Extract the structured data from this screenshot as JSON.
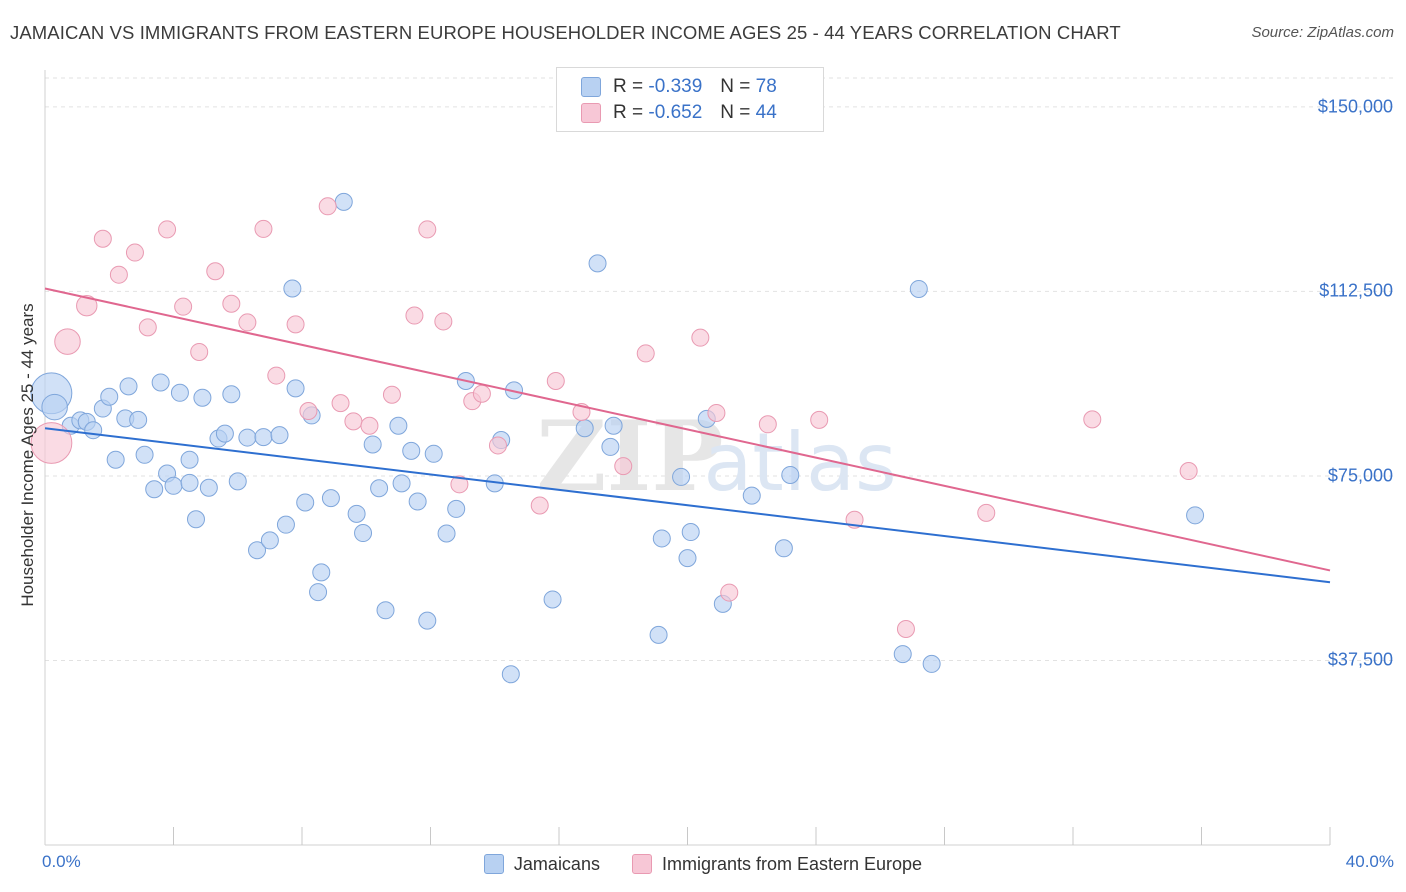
{
  "title": "JAMAICAN VS IMMIGRANTS FROM EASTERN EUROPE HOUSEHOLDER INCOME AGES 25 - 44 YEARS CORRELATION CHART",
  "source": "Source: ZipAtlas.com",
  "watermark": "ZIPatlas",
  "colors": {
    "blue_fill": "#b8d1f2",
    "blue_stroke": "#7fa6db",
    "blue_line": "#2e6fd0",
    "pink_fill": "#f7c7d6",
    "pink_stroke": "#e99ab2",
    "pink_line": "#e0678f",
    "tick_text": "#3a72c8",
    "grid": "#e2e2e2"
  },
  "legend_top": {
    "rows": [
      {
        "r_label": "R =",
        "r_value": "-0.339",
        "n_label": "N =",
        "n_value": "78",
        "series": "Jamaicans"
      },
      {
        "r_label": "R =",
        "r_value": "-0.652",
        "n_label": "N =",
        "n_value": "44",
        "series": "Immigrants from Eastern Europe"
      }
    ]
  },
  "legend_bottom": [
    "Jamaicans",
    "Immigrants from Eastern Europe"
  ],
  "chart_data": {
    "type": "scatter",
    "title": "JAMAICAN VS IMMIGRANTS FROM EASTERN EUROPE HOUSEHOLDER INCOME AGES 25 - 44 YEARS CORRELATION CHART",
    "xlabel": "",
    "ylabel": "Householder Income Ages 25 - 44 years",
    "xlim": [
      0,
      40
    ],
    "ylim": [
      0,
      157500
    ],
    "x_ticks_labeled": [
      {
        "value": 0,
        "label": "0.0%"
      },
      {
        "value": 40,
        "label": "40.0%"
      }
    ],
    "x_ticks_minor": [
      4,
      8,
      12,
      16,
      20,
      24,
      28,
      32,
      36,
      40
    ],
    "y_ticks": [
      {
        "value": 37500,
        "label": "$37,500"
      },
      {
        "value": 75000,
        "label": "$75,000"
      },
      {
        "value": 112500,
        "label": "$112,500"
      },
      {
        "value": 150000,
        "label": "$150,000"
      }
    ],
    "grid": "horizontal dashed",
    "legend": "top-center",
    "series": [
      {
        "name": "Jamaicans",
        "r": -0.339,
        "n": 78,
        "trend": {
          "x": [
            0,
            40
          ],
          "y": [
            84700,
            53400
          ]
        },
        "points": [
          {
            "x": 0.2,
            "y": 91800,
            "s": 2.4
          },
          {
            "x": 0.3,
            "y": 89000,
            "s": 1.5
          },
          {
            "x": 0.8,
            "y": 85200,
            "s": 1
          },
          {
            "x": 1.1,
            "y": 86300,
            "s": 1
          },
          {
            "x": 1.3,
            "y": 86000,
            "s": 1
          },
          {
            "x": 1.5,
            "y": 84300,
            "s": 1
          },
          {
            "x": 1.8,
            "y": 88700,
            "s": 1
          },
          {
            "x": 2.0,
            "y": 91100,
            "s": 1
          },
          {
            "x": 2.2,
            "y": 78300,
            "s": 1
          },
          {
            "x": 2.5,
            "y": 86700,
            "s": 1
          },
          {
            "x": 2.6,
            "y": 93200,
            "s": 1
          },
          {
            "x": 2.9,
            "y": 86400,
            "s": 1
          },
          {
            "x": 3.1,
            "y": 79300,
            "s": 1
          },
          {
            "x": 3.4,
            "y": 72300,
            "s": 1
          },
          {
            "x": 3.6,
            "y": 94000,
            "s": 1
          },
          {
            "x": 3.8,
            "y": 75500,
            "s": 1
          },
          {
            "x": 4.0,
            "y": 73000,
            "s": 1
          },
          {
            "x": 4.2,
            "y": 91900,
            "s": 1
          },
          {
            "x": 4.5,
            "y": 73600,
            "s": 1
          },
          {
            "x": 4.7,
            "y": 66200,
            "s": 1
          },
          {
            "x": 4.9,
            "y": 90900,
            "s": 1
          },
          {
            "x": 5.1,
            "y": 72600,
            "s": 1
          },
          {
            "x": 5.4,
            "y": 82600,
            "s": 1
          },
          {
            "x": 5.6,
            "y": 83600,
            "s": 1
          },
          {
            "x": 5.8,
            "y": 91600,
            "s": 1
          },
          {
            "x": 6.0,
            "y": 73900,
            "s": 1
          },
          {
            "x": 6.3,
            "y": 82800,
            "s": 1
          },
          {
            "x": 6.6,
            "y": 59900,
            "s": 1
          },
          {
            "x": 6.8,
            "y": 82900,
            "s": 1
          },
          {
            "x": 7.0,
            "y": 61900,
            "s": 1
          },
          {
            "x": 7.3,
            "y": 83300,
            "s": 1
          },
          {
            "x": 7.5,
            "y": 65100,
            "s": 1
          },
          {
            "x": 7.7,
            "y": 113100,
            "s": 1
          },
          {
            "x": 7.8,
            "y": 92800,
            "s": 1
          },
          {
            "x": 8.1,
            "y": 69600,
            "s": 1
          },
          {
            "x": 8.3,
            "y": 87300,
            "s": 1
          },
          {
            "x": 8.5,
            "y": 51400,
            "s": 1
          },
          {
            "x": 8.6,
            "y": 55400,
            "s": 1
          },
          {
            "x": 8.9,
            "y": 70500,
            "s": 1
          },
          {
            "x": 9.3,
            "y": 130700,
            "s": 1
          },
          {
            "x": 9.7,
            "y": 67300,
            "s": 1
          },
          {
            "x": 9.9,
            "y": 63400,
            "s": 1
          },
          {
            "x": 10.2,
            "y": 81400,
            "s": 1
          },
          {
            "x": 10.4,
            "y": 72500,
            "s": 1
          },
          {
            "x": 10.6,
            "y": 47700,
            "s": 1
          },
          {
            "x": 11.0,
            "y": 85200,
            "s": 1
          },
          {
            "x": 11.1,
            "y": 73500,
            "s": 1
          },
          {
            "x": 11.4,
            "y": 80100,
            "s": 1
          },
          {
            "x": 11.6,
            "y": 69800,
            "s": 1
          },
          {
            "x": 11.9,
            "y": 45600,
            "s": 1
          },
          {
            "x": 12.1,
            "y": 79500,
            "s": 1
          },
          {
            "x": 12.5,
            "y": 63300,
            "s": 1
          },
          {
            "x": 12.8,
            "y": 68300,
            "s": 1
          },
          {
            "x": 13.1,
            "y": 94300,
            "s": 1
          },
          {
            "x": 14.0,
            "y": 73500,
            "s": 1
          },
          {
            "x": 14.2,
            "y": 82300,
            "s": 1
          },
          {
            "x": 14.5,
            "y": 34700,
            "s": 1
          },
          {
            "x": 14.6,
            "y": 92400,
            "s": 1
          },
          {
            "x": 15.8,
            "y": 49900,
            "s": 1
          },
          {
            "x": 16.8,
            "y": 84700,
            "s": 1
          },
          {
            "x": 17.2,
            "y": 118200,
            "s": 1
          },
          {
            "x": 17.7,
            "y": 85200,
            "s": 1
          },
          {
            "x": 17.6,
            "y": 80900,
            "s": 1
          },
          {
            "x": 19.1,
            "y": 42700,
            "s": 1
          },
          {
            "x": 19.2,
            "y": 62300,
            "s": 1
          },
          {
            "x": 19.8,
            "y": 74800,
            "s": 1
          },
          {
            "x": 20.0,
            "y": 58300,
            "s": 1
          },
          {
            "x": 20.1,
            "y": 63600,
            "s": 1
          },
          {
            "x": 20.6,
            "y": 86600,
            "s": 1
          },
          {
            "x": 21.1,
            "y": 49000,
            "s": 1
          },
          {
            "x": 22.0,
            "y": 71000,
            "s": 1
          },
          {
            "x": 23.0,
            "y": 60300,
            "s": 1
          },
          {
            "x": 23.2,
            "y": 75200,
            "s": 1
          },
          {
            "x": 26.7,
            "y": 38800,
            "s": 1
          },
          {
            "x": 27.2,
            "y": 113000,
            "s": 1
          },
          {
            "x": 27.6,
            "y": 36800,
            "s": 1
          },
          {
            "x": 35.8,
            "y": 67000,
            "s": 1
          },
          {
            "x": 4.5,
            "y": 78300,
            "s": 1
          }
        ]
      },
      {
        "name": "Immigrants from Eastern Europe",
        "r": -0.652,
        "n": 44,
        "trend": {
          "x": [
            0,
            40
          ],
          "y": [
            113100,
            55800
          ]
        },
        "points": [
          {
            "x": 0.2,
            "y": 81700,
            "s": 2.4
          },
          {
            "x": 0.7,
            "y": 102300,
            "s": 1.5
          },
          {
            "x": 1.3,
            "y": 109600,
            "s": 1.2
          },
          {
            "x": 1.8,
            "y": 123200,
            "s": 1
          },
          {
            "x": 2.3,
            "y": 115900,
            "s": 1
          },
          {
            "x": 2.8,
            "y": 120400,
            "s": 1
          },
          {
            "x": 3.2,
            "y": 105200,
            "s": 1
          },
          {
            "x": 3.8,
            "y": 125100,
            "s": 1
          },
          {
            "x": 4.3,
            "y": 109400,
            "s": 1
          },
          {
            "x": 4.8,
            "y": 100200,
            "s": 1
          },
          {
            "x": 5.3,
            "y": 116600,
            "s": 1
          },
          {
            "x": 5.8,
            "y": 110000,
            "s": 1
          },
          {
            "x": 6.3,
            "y": 106200,
            "s": 1
          },
          {
            "x": 6.8,
            "y": 125200,
            "s": 1
          },
          {
            "x": 7.2,
            "y": 95400,
            "s": 1
          },
          {
            "x": 7.8,
            "y": 105800,
            "s": 1
          },
          {
            "x": 8.2,
            "y": 88200,
            "s": 1
          },
          {
            "x": 8.8,
            "y": 129800,
            "s": 1
          },
          {
            "x": 9.2,
            "y": 89800,
            "s": 1
          },
          {
            "x": 9.6,
            "y": 86100,
            "s": 1
          },
          {
            "x": 10.1,
            "y": 85200,
            "s": 1
          },
          {
            "x": 10.8,
            "y": 91500,
            "s": 1
          },
          {
            "x": 11.5,
            "y": 107600,
            "s": 1
          },
          {
            "x": 11.9,
            "y": 125100,
            "s": 1
          },
          {
            "x": 12.4,
            "y": 106400,
            "s": 1
          },
          {
            "x": 12.9,
            "y": 73300,
            "s": 1
          },
          {
            "x": 13.3,
            "y": 90200,
            "s": 1
          },
          {
            "x": 13.6,
            "y": 91700,
            "s": 1
          },
          {
            "x": 14.1,
            "y": 81200,
            "s": 1
          },
          {
            "x": 15.4,
            "y": 69000,
            "s": 1
          },
          {
            "x": 15.9,
            "y": 94300,
            "s": 1
          },
          {
            "x": 16.7,
            "y": 88000,
            "s": 1
          },
          {
            "x": 18.0,
            "y": 77000,
            "s": 1
          },
          {
            "x": 18.7,
            "y": 99900,
            "s": 1
          },
          {
            "x": 20.4,
            "y": 103100,
            "s": 1
          },
          {
            "x": 20.9,
            "y": 87800,
            "s": 1
          },
          {
            "x": 21.3,
            "y": 51300,
            "s": 1
          },
          {
            "x": 22.5,
            "y": 85500,
            "s": 1
          },
          {
            "x": 24.1,
            "y": 86400,
            "s": 1
          },
          {
            "x": 25.2,
            "y": 66100,
            "s": 1
          },
          {
            "x": 26.8,
            "y": 43900,
            "s": 1
          },
          {
            "x": 29.3,
            "y": 67500,
            "s": 1
          },
          {
            "x": 32.6,
            "y": 86500,
            "s": 1
          },
          {
            "x": 35.6,
            "y": 76000,
            "s": 1
          }
        ]
      }
    ]
  }
}
